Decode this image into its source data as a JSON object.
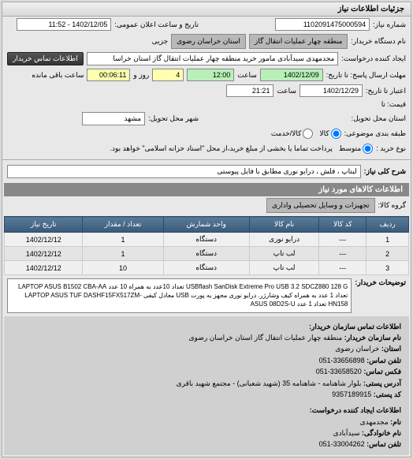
{
  "panel_title": "جزئیات اطلاعات نیاز",
  "labels": {
    "request_no": "شماره نیاز:",
    "announce_date": "تاریخ و ساعت اعلان عمومی:",
    "buyer_device": "نام دستگاه خریدار:",
    "buyer_region": "منطقه چهار عملیات انتقال گاز",
    "buyer_province": "استان خراسان رضوی",
    "partial_flag": "جزیی",
    "requester": "ایجاد کننده درخواست:",
    "contact_btn": "اطلاعات تماس خریدار",
    "reply_until": "مهلت ارسال پاسخ: تا تاریخ:",
    "hour": "ساعت",
    "day": "روز و",
    "remaining": "ساعت باقی مانده",
    "valid_until": "اعتبار تا تاریخ:",
    "from_price": "قیمت: تا",
    "delivery_province": "استان محل تحویل:",
    "delivery_city": "شهر محل تحویل:",
    "budget_type": "طبقه بندی موضوعی:",
    "buy_type": "نوع خرید :",
    "title_key": "شرح کلی نیاز:",
    "goods_section": "اطلاعات کالاهای مورد نیاز",
    "goods_group": "گروه کالا:",
    "buyer_desc": "توضیحات خریدار:",
    "contact_title": "اطلاعات تماس سازمان خریدار:",
    "org_name_lbl": "نام سازمان خریدار:",
    "province_lbl": "استان:",
    "phone_lbl": "تلفن تماس:",
    "fax_lbl": "فکس تماس:",
    "address_lbl": "آدرس پستی:",
    "postal_lbl": "کد پستی:",
    "creator_title": "اطلاعات ایجاد کننده درخواست:",
    "name_lbl": "نام:",
    "family_lbl": "نام خانوادگی:",
    "contact_phone_lbl": "تلفن تماس:"
  },
  "values": {
    "request_no": "1102091475000594",
    "announce_date": "1402/12/05 - 11:52",
    "requester": "مجدمهدی سیدآبادی مامور خرید منطقه چهار عملیات انتقال گاز   استان خراسا",
    "reply_date": "1402/12/09",
    "reply_hour": "12:00",
    "reply_days": "4",
    "reply_remain": "00:06:11",
    "valid_date": "1402/12/29",
    "valid_hour": "21:21",
    "delivery_city": "مشهد",
    "title": "لبتاپ ، فلش ، درایو نوری مطابق با فایل پیوستی",
    "goods_group": "تجهیزات و وسایل تحصیلی واداری",
    "description": "USBflash SanDisk Extreme Pro USB 3.2 SDCZ880 128 G تعداد 10عدد به همراه 10 عدد LAPTOP ASUS B1502 CBA-AA تعداد 1 عدد به همراه کیف وشارژر. درایو نوری مجهز به پورت USB معادل کیفی LAPTOP ASUS TUF DASHF15FX517ZM-HN158 تعداد 1 عدد ASUS 08D2S-U",
    "org_name": "منطقه چهار عملیات انتقال گاز استان خراسان رضوی",
    "province": "خراسان رضوی",
    "phone": "33656898-051",
    "fax": "33658520-051",
    "address": "بلوار شاهنامه - شاهنامه 35 (شهید شعبانی) - مجتمع شهید باقری",
    "postal": "9357189915",
    "creator_name": "مجدمهدی",
    "creator_family": "سیدآبادی",
    "creator_phone": "33004262-051"
  },
  "budget_options": [
    {
      "label": "کالا",
      "checked": true
    },
    {
      "label": "کالا/خدمت",
      "checked": false
    }
  ],
  "buy_options": [
    {
      "label": "متوسط",
      "checked": true
    }
  ],
  "buy_note": "پرداخت تماما یا بخشی از مبلغ خرید،از محل \"اسناد خزانه اسلامی\" خواهد بود.",
  "table": {
    "headers": [
      "ردیف",
      "کد کالا",
      "نام کالا",
      "واحد شمارش",
      "تعداد / مقدار",
      "تاریخ نیاز"
    ],
    "rows": [
      [
        "1",
        "---",
        "درایو نوری",
        "دستگاه",
        "1",
        "1402/12/12"
      ],
      [
        "2",
        "---",
        "لب تاپ",
        "دستگاه",
        "1",
        "1402/12/12"
      ],
      [
        "3",
        "---",
        "لب تاپ",
        "دستگاه",
        "10",
        "1402/12/12"
      ]
    ]
  },
  "colors": {
    "header_bg": "#4a6a8a",
    "green": "#b8f0b8",
    "yellow": "#ffffb0"
  }
}
